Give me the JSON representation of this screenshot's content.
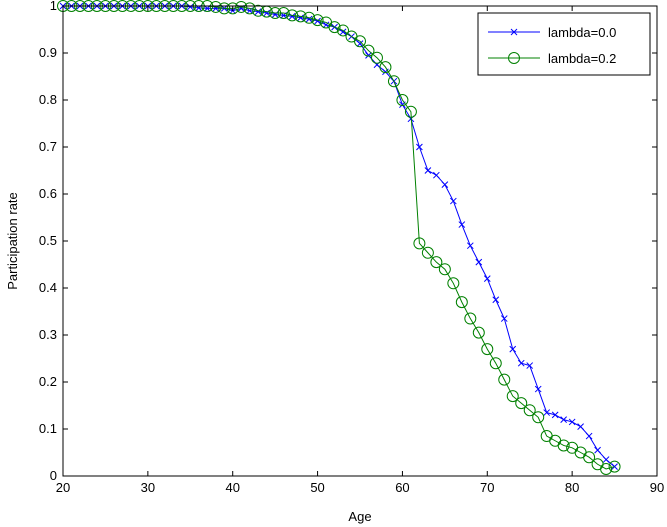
{
  "chart_data": {
    "type": "line",
    "title": "",
    "xlabel": "Age",
    "ylabel": "Participation rate",
    "xlim": [
      20,
      90
    ],
    "ylim": [
      0,
      1
    ],
    "xticks": [
      20,
      30,
      40,
      50,
      60,
      70,
      80,
      90
    ],
    "yticks": [
      0,
      0.1,
      0.2,
      0.3,
      0.4,
      0.5,
      0.6,
      0.7,
      0.8,
      0.9,
      1
    ],
    "ytick_labels": [
      "0",
      "0.1",
      "0.2",
      "0.3",
      "0.4",
      "0.5",
      "0.6",
      "0.7",
      "0.8",
      "0.9",
      "1"
    ],
    "grid": false,
    "legend_position": "top-right",
    "series": [
      {
        "name": "lambda=0.0",
        "color": "#0000ff",
        "marker": "x",
        "x": [
          20,
          21,
          22,
          23,
          24,
          25,
          26,
          27,
          28,
          29,
          30,
          31,
          32,
          33,
          34,
          35,
          36,
          37,
          38,
          39,
          40,
          41,
          42,
          43,
          44,
          45,
          46,
          47,
          48,
          49,
          50,
          51,
          52,
          53,
          54,
          55,
          56,
          57,
          58,
          59,
          60,
          61,
          62,
          63,
          64,
          65,
          66,
          67,
          68,
          69,
          70,
          71,
          72,
          73,
          74,
          75,
          76,
          77,
          78,
          79,
          80,
          81,
          82,
          83,
          84,
          85
        ],
        "y": [
          1,
          1,
          1,
          1,
          1,
          1,
          1,
          1,
          1,
          1,
          1,
          1,
          1,
          1,
          1,
          0.998,
          0.996,
          0.995,
          0.995,
          0.995,
          0.99,
          0.995,
          0.99,
          0.988,
          0.985,
          0.982,
          0.98,
          0.978,
          0.975,
          0.972,
          0.968,
          0.96,
          0.955,
          0.945,
          0.935,
          0.92,
          0.895,
          0.875,
          0.86,
          0.84,
          0.79,
          0.76,
          0.7,
          0.65,
          0.64,
          0.62,
          0.585,
          0.535,
          0.49,
          0.455,
          0.42,
          0.375,
          0.335,
          0.27,
          0.24,
          0.235,
          0.185,
          0.135,
          0.13,
          0.12,
          0.115,
          0.105,
          0.085,
          0.055,
          0.035,
          0.02
        ]
      },
      {
        "name": "lambda=0.2",
        "color": "#008000",
        "marker": "o",
        "x": [
          20,
          21,
          22,
          23,
          24,
          25,
          26,
          27,
          28,
          29,
          30,
          31,
          32,
          33,
          34,
          35,
          36,
          37,
          38,
          39,
          40,
          41,
          42,
          43,
          44,
          45,
          46,
          47,
          48,
          49,
          50,
          51,
          52,
          53,
          54,
          55,
          56,
          57,
          58,
          59,
          60,
          61,
          62,
          63,
          64,
          65,
          66,
          67,
          68,
          69,
          70,
          71,
          72,
          73,
          74,
          75,
          76,
          77,
          78,
          79,
          80,
          81,
          82,
          83,
          84,
          85
        ],
        "y": [
          1,
          1,
          1,
          1,
          1,
          1,
          1,
          1,
          1,
          1,
          1,
          1,
          1,
          1,
          1,
          1,
          1,
          1,
          0.998,
          0.995,
          0.995,
          0.998,
          0.995,
          0.99,
          0.988,
          0.985,
          0.985,
          0.98,
          0.978,
          0.975,
          0.97,
          0.965,
          0.955,
          0.948,
          0.935,
          0.925,
          0.905,
          0.89,
          0.87,
          0.84,
          0.8,
          0.775,
          0.495,
          0.475,
          0.455,
          0.44,
          0.41,
          0.37,
          0.335,
          0.305,
          0.27,
          0.24,
          0.205,
          0.17,
          0.155,
          0.14,
          0.125,
          0.085,
          0.075,
          0.065,
          0.06,
          0.05,
          0.04,
          0.025,
          0.015,
          0.02
        ]
      }
    ]
  }
}
